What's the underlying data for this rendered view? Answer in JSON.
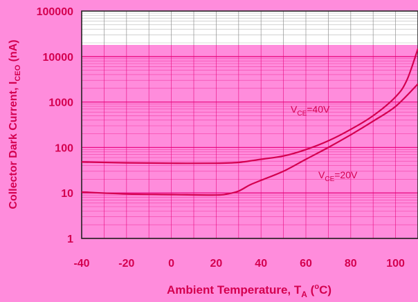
{
  "chart_data": {
    "type": "line",
    "xlabel": {
      "main": "Ambient Temperature, T",
      "sub": "A",
      "unit_open": " (",
      "sup": "o",
      "unit_close": "C)"
    },
    "ylabel": {
      "main": "Collector Dark Current, I",
      "sub": "CEO",
      "unit": " (nA)"
    },
    "x_scale": "linear",
    "y_scale": "log",
    "xlim": [
      -40,
      110
    ],
    "ylim": [
      1,
      100000
    ],
    "x_ticks": [
      -40,
      -20,
      0,
      20,
      40,
      60,
      80,
      100
    ],
    "x_tick_labels": [
      "-40",
      "-20",
      "0",
      "20",
      "40",
      "60",
      "80",
      "100"
    ],
    "y_ticks": [
      1,
      10,
      100,
      1000,
      10000,
      100000
    ],
    "y_tick_labels": [
      "1",
      "10",
      "100",
      "1000",
      "10000",
      "100000"
    ],
    "grid": true,
    "highlight_band": {
      "y_from": 1,
      "y_to": 18000,
      "color": "#ff8cdc"
    },
    "colors": {
      "background": "#ff8cdc",
      "white_band": "#ffffff",
      "grid_pink": "#e8007a",
      "grid_white": "#888888",
      "line": "#d4004f",
      "text": "#d4004f"
    },
    "series": [
      {
        "label": {
          "prefix": "V",
          "sub": "CE",
          "suffix": "=40V"
        },
        "points": [
          [
            -40,
            48
          ],
          [
            -20,
            46
          ],
          [
            0,
            45
          ],
          [
            20,
            45
          ],
          [
            30,
            47
          ],
          [
            40,
            55
          ],
          [
            50,
            65
          ],
          [
            60,
            90
          ],
          [
            70,
            140
          ],
          [
            80,
            250
          ],
          [
            90,
            500
          ],
          [
            100,
            1300
          ],
          [
            105,
            3000
          ],
          [
            110,
            15000
          ]
        ]
      },
      {
        "label": {
          "prefix": "V",
          "sub": "CE",
          "suffix": "=20V"
        },
        "points": [
          [
            -40,
            10.5
          ],
          [
            -20,
            9.5
          ],
          [
            0,
            9.2
          ],
          [
            20,
            9.0
          ],
          [
            25,
            9.5
          ],
          [
            30,
            11
          ],
          [
            35,
            15
          ],
          [
            40,
            19
          ],
          [
            50,
            30
          ],
          [
            60,
            55
          ],
          [
            70,
            100
          ],
          [
            80,
            190
          ],
          [
            90,
            380
          ],
          [
            100,
            800
          ],
          [
            110,
            2500
          ]
        ]
      }
    ]
  }
}
